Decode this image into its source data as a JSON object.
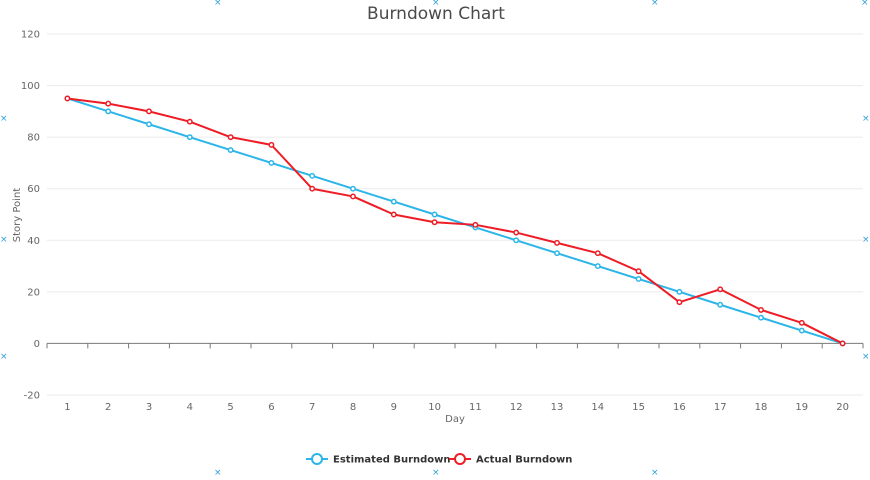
{
  "chart_data": {
    "type": "line",
    "title": "Burndown Chart",
    "xlabel": "Day",
    "ylabel": "Story Point",
    "x": [
      1,
      2,
      3,
      4,
      5,
      6,
      7,
      8,
      9,
      10,
      11,
      12,
      13,
      14,
      15,
      16,
      17,
      18,
      19,
      20
    ],
    "ylim": [
      -20,
      120
    ],
    "yticks": [
      -20,
      0,
      20,
      40,
      60,
      80,
      100,
      120
    ],
    "grid": true,
    "legend_position": "bottom",
    "series": [
      {
        "name": "Estimated Burndown",
        "color": "#2bb5e8",
        "values": [
          95,
          90,
          85,
          80,
          75,
          70,
          65,
          60,
          55,
          50,
          45,
          40,
          35,
          30,
          25,
          20,
          15,
          10,
          5,
          0
        ]
      },
      {
        "name": "Actual Burndown",
        "color": "#ee1c25",
        "values": [
          95,
          93,
          90,
          86,
          80,
          77,
          60,
          57,
          50,
          47,
          46,
          43,
          39,
          35,
          28,
          16,
          21,
          13,
          8,
          0
        ]
      }
    ]
  }
}
